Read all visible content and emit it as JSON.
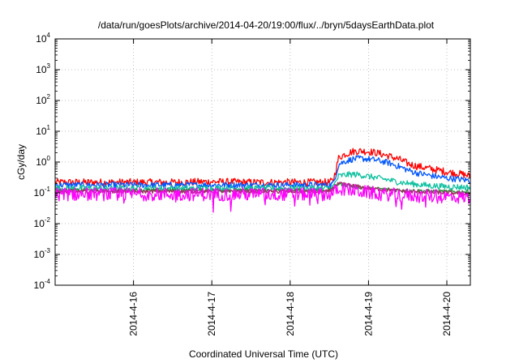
{
  "chart_data": {
    "type": "line",
    "title": "/data/run/goesPlots/archive/2014-04-20/19:00/flux/../bryn/5daysEarthData.plot",
    "xlabel": "Coordinated Universal Time (UTC)",
    "ylabel": "cGy/day",
    "y_scale": "log",
    "ylim_exponents": [
      -4,
      4
    ],
    "y_tick_exponents": [
      -4,
      -3,
      -2,
      -1,
      0,
      1,
      2,
      3,
      4
    ],
    "y_tick_base": "10",
    "x_unit": "day",
    "xlim": [
      0,
      5.3
    ],
    "x_ticks": [
      {
        "x": 1,
        "label": "2014-4-16"
      },
      {
        "x": 2,
        "label": "2014-4-17"
      },
      {
        "x": 3,
        "label": "2014-4-18"
      },
      {
        "x": 4,
        "label": "2014-4-19"
      },
      {
        "x": 5,
        "label": "2014-4-20"
      }
    ],
    "grid": true,
    "legend": "none",
    "series": [
      {
        "color": "#ff0000",
        "noise": 0.12,
        "values": [
          [
            0,
            0.22
          ],
          [
            0.5,
            0.22
          ],
          [
            1,
            0.22
          ],
          [
            1.5,
            0.22
          ],
          [
            2,
            0.23
          ],
          [
            2.5,
            0.22
          ],
          [
            3,
            0.22
          ],
          [
            3.5,
            0.22
          ],
          [
            3.55,
            0.25
          ],
          [
            3.62,
            1.4
          ],
          [
            3.7,
            1.8
          ],
          [
            3.8,
            2.2
          ],
          [
            3.9,
            2.3
          ],
          [
            4,
            2.2
          ],
          [
            4.1,
            2.0
          ],
          [
            4.25,
            1.6
          ],
          [
            4.4,
            1.2
          ],
          [
            4.5,
            0.9
          ],
          [
            4.6,
            0.75
          ],
          [
            4.8,
            0.6
          ],
          [
            5,
            0.48
          ],
          [
            5.2,
            0.4
          ],
          [
            5.3,
            0.35
          ]
        ]
      },
      {
        "color": "#0055ff",
        "noise": 0.1,
        "values": [
          [
            0,
            0.18
          ],
          [
            0.5,
            0.18
          ],
          [
            1,
            0.18
          ],
          [
            1.5,
            0.18
          ],
          [
            2,
            0.18
          ],
          [
            2.5,
            0.18
          ],
          [
            3,
            0.18
          ],
          [
            3.5,
            0.18
          ],
          [
            3.55,
            0.2
          ],
          [
            3.62,
            0.85
          ],
          [
            3.7,
            1.05
          ],
          [
            3.8,
            1.25
          ],
          [
            3.9,
            1.3
          ],
          [
            4,
            1.25
          ],
          [
            4.1,
            1.15
          ],
          [
            4.25,
            0.95
          ],
          [
            4.4,
            0.7
          ],
          [
            4.5,
            0.55
          ],
          [
            4.6,
            0.45
          ],
          [
            4.8,
            0.36
          ],
          [
            5,
            0.3
          ],
          [
            5.2,
            0.27
          ],
          [
            5.3,
            0.25
          ]
        ]
      },
      {
        "color": "#10c0a0",
        "noise": 0.1,
        "values": [
          [
            0,
            0.14
          ],
          [
            0.5,
            0.14
          ],
          [
            1,
            0.14
          ],
          [
            1.5,
            0.14
          ],
          [
            2,
            0.14
          ],
          [
            2.5,
            0.14
          ],
          [
            3,
            0.14
          ],
          [
            3.5,
            0.14
          ],
          [
            3.55,
            0.16
          ],
          [
            3.62,
            0.35
          ],
          [
            3.7,
            0.38
          ],
          [
            3.8,
            0.4
          ],
          [
            3.9,
            0.38
          ],
          [
            4,
            0.34
          ],
          [
            4.2,
            0.28
          ],
          [
            4.4,
            0.22
          ],
          [
            4.6,
            0.19
          ],
          [
            4.8,
            0.17
          ],
          [
            5,
            0.16
          ],
          [
            5.3,
            0.15
          ]
        ]
      },
      {
        "color": "#2a8a3a",
        "noise": 0.06,
        "values": [
          [
            0,
            0.12
          ],
          [
            1,
            0.12
          ],
          [
            2,
            0.12
          ],
          [
            3,
            0.12
          ],
          [
            3.5,
            0.12
          ],
          [
            3.62,
            0.2
          ],
          [
            3.8,
            0.16
          ],
          [
            4,
            0.14
          ],
          [
            4.5,
            0.12
          ],
          [
            5,
            0.11
          ],
          [
            5.3,
            0.11
          ]
        ]
      },
      {
        "color": "#a03060",
        "noise": 0.06,
        "values": [
          [
            0,
            0.11
          ],
          [
            1,
            0.11
          ],
          [
            2,
            0.11
          ],
          [
            3,
            0.11
          ],
          [
            3.5,
            0.11
          ],
          [
            3.62,
            0.2
          ],
          [
            3.75,
            0.18
          ],
          [
            4,
            0.14
          ],
          [
            4.5,
            0.11
          ],
          [
            5,
            0.1
          ],
          [
            5.3,
            0.095
          ]
        ]
      },
      {
        "color": "#ff00ff",
        "noise": 0.22,
        "values": [
          [
            0,
            0.09
          ],
          [
            0.5,
            0.09
          ],
          [
            1,
            0.09
          ],
          [
            1.5,
            0.09
          ],
          [
            2,
            0.09
          ],
          [
            2.5,
            0.09
          ],
          [
            3,
            0.09
          ],
          [
            3.5,
            0.09
          ],
          [
            3.55,
            0.1
          ],
          [
            3.62,
            0.14
          ],
          [
            3.7,
            0.13
          ],
          [
            3.9,
            0.11
          ],
          [
            4.2,
            0.09
          ],
          [
            4.6,
            0.08
          ],
          [
            5,
            0.075
          ],
          [
            5.3,
            0.07
          ]
        ]
      }
    ]
  }
}
